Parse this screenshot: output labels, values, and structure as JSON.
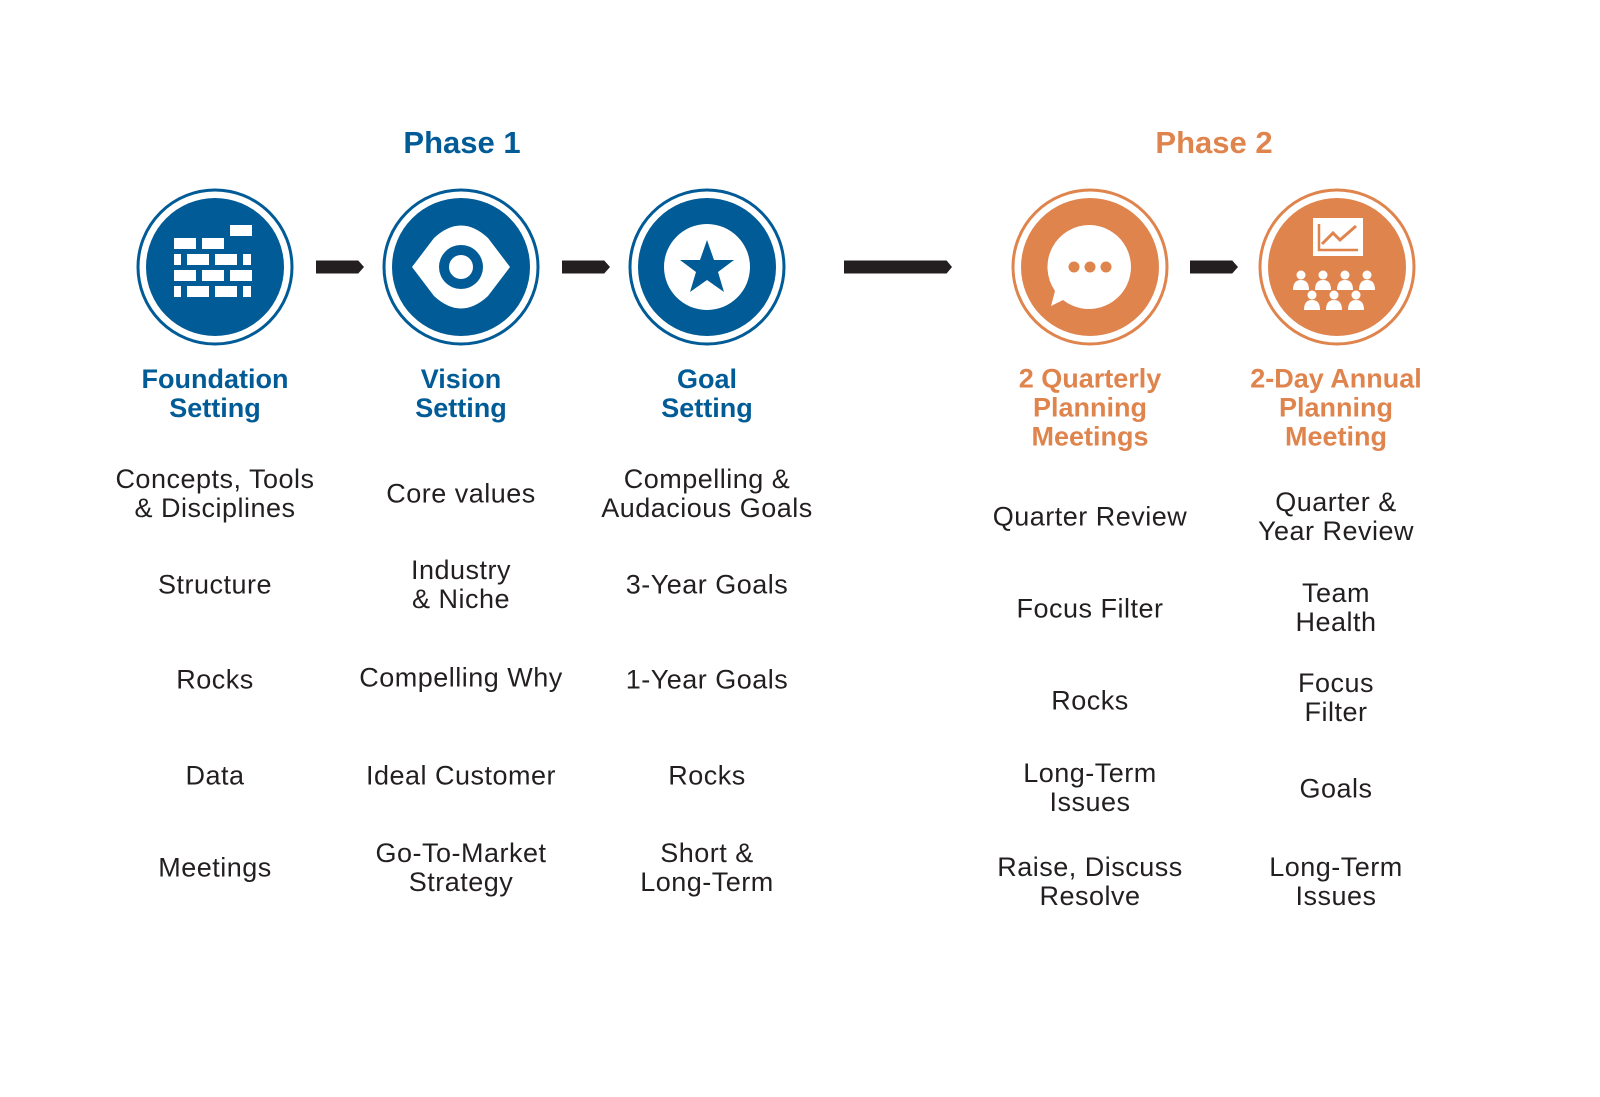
{
  "colors": {
    "phase1": "#005b96",
    "phase2": "#e0844e",
    "text": "#231f20",
    "arrow": "#231f20"
  },
  "phases": [
    {
      "label": "Phase 1"
    },
    {
      "label": "Phase 2"
    }
  ],
  "columns": [
    {
      "icon": "brick-wall-icon",
      "title": "Foundation\nSetting",
      "items": [
        "Concepts, Tools\n& Disciplines",
        "Structure",
        "Rocks",
        "Data",
        "Meetings"
      ]
    },
    {
      "icon": "eye-icon",
      "title": "Vision\nSetting",
      "items": [
        "Core values",
        "Industry\n& Niche",
        "Compelling Why",
        "Ideal Customer",
        "Go-To-Market\nStrategy"
      ]
    },
    {
      "icon": "star-icon",
      "title": "Goal\nSetting",
      "items": [
        "Compelling &\nAudacious Goals",
        "3-Year Goals",
        "1-Year Goals",
        "Rocks",
        "Short &\nLong-Term"
      ]
    },
    {
      "icon": "speech-bubble-icon",
      "title": "2 Quarterly\nPlanning\nMeetings",
      "items": [
        "Quarter Review",
        "Focus Filter",
        "Rocks",
        "Long-Term\nIssues",
        "Raise, Discuss\nResolve"
      ]
    },
    {
      "icon": "chart-team-icon",
      "title": "2-Day Annual\nPlanning\nMeeting",
      "items": [
        "Quarter &\nYear Review",
        "Team\nHealth",
        "Focus\nFilter",
        "Goals",
        "Long-Term\nIssues"
      ]
    }
  ]
}
